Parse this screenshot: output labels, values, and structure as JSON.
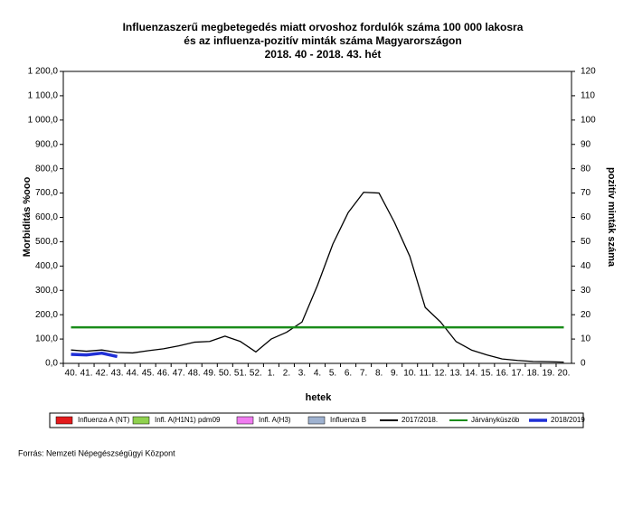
{
  "chart_data": {
    "type": "line",
    "title": [
      "Influenzaszerű megbetegedés miatt orvoshoz fordulók száma 100 000 lakosra",
      "és az influenza-pozitív minták száma Magyarországon",
      "2018. 40 - 2018. 43. hét"
    ],
    "x_label": "hetek",
    "y_label": "Morbiditás %ooo",
    "y2_label": "pozitív minták száma",
    "source": "Forrás: Nemzeti Népegészségügyi Központ",
    "categories": [
      "40.",
      "41.",
      "42.",
      "43.",
      "44.",
      "45.",
      "46.",
      "47.",
      "48.",
      "49.",
      "50.",
      "51.",
      "52.",
      "1.",
      "2.",
      "3.",
      "4.",
      "5.",
      "6.",
      "7.",
      "8.",
      "9.",
      "10.",
      "11.",
      "12.",
      "13.",
      "14.",
      "15.",
      "16.",
      "17.",
      "18.",
      "19.",
      "20."
    ],
    "series": [
      {
        "name": "Influenza A (NT)",
        "type": "bar",
        "axis": "y2",
        "color": "#e31a1c",
        "values": [
          null,
          null,
          null,
          null,
          null,
          null,
          null,
          null,
          null,
          null,
          null,
          null,
          null,
          null,
          null,
          null,
          null,
          null,
          null,
          null,
          null,
          null,
          null,
          null,
          null,
          null,
          null,
          null,
          null,
          null,
          null,
          null,
          null
        ]
      },
      {
        "name": "Infl. A(H1N1) pdm09",
        "type": "bar",
        "axis": "y2",
        "color": "#8fd14f",
        "values": [
          null,
          null,
          null,
          null,
          null,
          null,
          null,
          null,
          null,
          null,
          null,
          null,
          null,
          null,
          null,
          null,
          null,
          null,
          null,
          null,
          null,
          null,
          null,
          null,
          null,
          null,
          null,
          null,
          null,
          null,
          null,
          null,
          null
        ]
      },
      {
        "name": "Infl. A(H3)",
        "type": "bar",
        "axis": "y2",
        "color": "#f07cf0",
        "values": [
          null,
          null,
          null,
          null,
          null,
          null,
          null,
          null,
          null,
          null,
          null,
          null,
          null,
          null,
          null,
          null,
          null,
          null,
          null,
          null,
          null,
          null,
          null,
          null,
          null,
          null,
          null,
          null,
          null,
          null,
          null,
          null,
          null
        ]
      },
      {
        "name": "Influenza B",
        "type": "bar",
        "axis": "y2",
        "color": "#9fb2d0",
        "values": [
          null,
          null,
          null,
          null,
          null,
          null,
          null,
          null,
          null,
          null,
          null,
          null,
          null,
          null,
          null,
          null,
          null,
          null,
          null,
          null,
          null,
          null,
          null,
          null,
          null,
          null,
          null,
          null,
          null,
          null,
          null,
          null,
          null
        ]
      },
      {
        "name": "2017/2018.",
        "type": "line",
        "color": "#000000",
        "values": [
          55,
          50,
          55,
          45,
          43,
          52,
          60,
          72,
          87,
          90,
          112,
          90,
          47,
          100,
          128,
          170,
          320,
          490,
          620,
          703,
          700,
          580,
          440,
          230,
          170,
          90,
          55,
          35,
          18,
          12,
          8,
          7,
          5
        ]
      },
      {
        "name": "Járványküszöb",
        "type": "line",
        "color": "#1a8c1a",
        "values": [
          148,
          148,
          148,
          148,
          148,
          148,
          148,
          148,
          148,
          148,
          148,
          148,
          148,
          148,
          148,
          148,
          148,
          148,
          148,
          148,
          148,
          148,
          148,
          148,
          148,
          148,
          148,
          148,
          148,
          148,
          148,
          148,
          148
        ]
      },
      {
        "name": "2018/2019",
        "type": "line",
        "color": "#1f2fd6",
        "values": [
          37,
          35,
          42,
          28,
          null,
          null,
          null,
          null,
          null,
          null,
          null,
          null,
          null,
          null,
          null,
          null,
          null,
          null,
          null,
          null,
          null,
          null,
          null,
          null,
          null,
          null,
          null,
          null,
          null,
          null,
          null,
          null,
          null
        ]
      }
    ],
    "ylim": [
      0,
      1200
    ],
    "yticks": [
      {
        "value": 0,
        "label": "0,0"
      },
      {
        "value": 100,
        "label": "100,0"
      },
      {
        "value": 200,
        "label": "200,0"
      },
      {
        "value": 300,
        "label": "300,0"
      },
      {
        "value": 400,
        "label": "400,0"
      },
      {
        "value": 500,
        "label": "500,0"
      },
      {
        "value": 600,
        "label": "600,0"
      },
      {
        "value": 700,
        "label": "700,0"
      },
      {
        "value": 800,
        "label": "800,0"
      },
      {
        "value": 900,
        "label": "900,0"
      },
      {
        "value": 1000,
        "label": "1 000,0"
      },
      {
        "value": 1100,
        "label": "1 100,0"
      },
      {
        "value": 1200,
        "label": "1 200,0"
      }
    ],
    "y2lim": [
      0,
      120
    ],
    "y2ticks": [
      0,
      10,
      20,
      30,
      40,
      50,
      60,
      70,
      80,
      90,
      100,
      110,
      120
    ],
    "grid": false
  }
}
